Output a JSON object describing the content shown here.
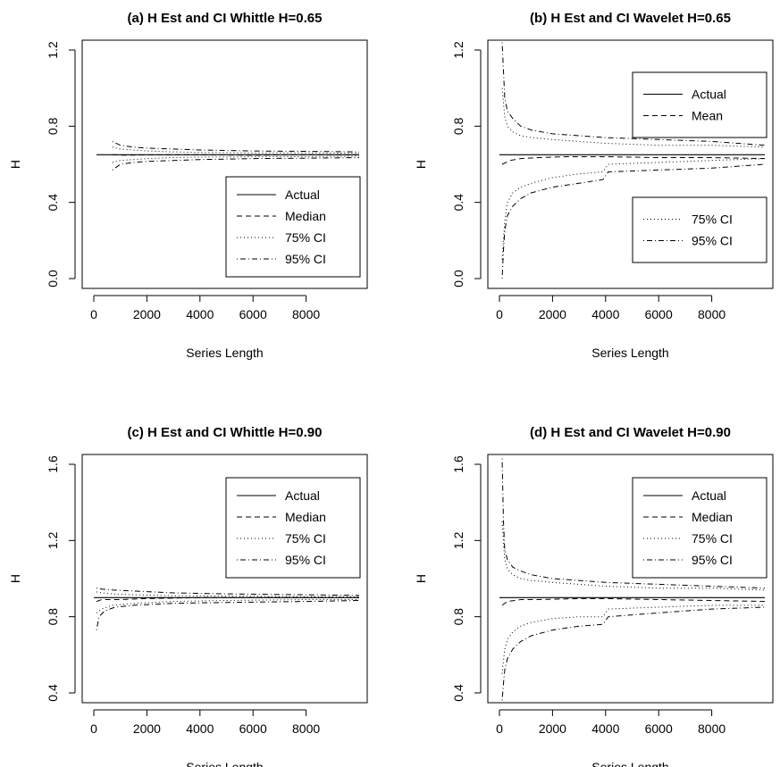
{
  "chart_data": [
    {
      "type": "line",
      "title": "(a) H Est and CI Whittle H=0.65",
      "xlabel": "Series Length",
      "ylabel": "H",
      "xlim": [
        0,
        10000
      ],
      "ylim": [
        0,
        1.2
      ],
      "xticks": [
        0,
        2000,
        4000,
        6000,
        8000
      ],
      "yticks": [
        0.0,
        0.4,
        0.8,
        1.2
      ],
      "legend": {
        "entries": [
          "Actual",
          "Median",
          "75% CI",
          "95% CI"
        ],
        "placement": "bottom-right"
      },
      "series": [
        {
          "name": "Actual",
          "style": "solid",
          "x": [
            100,
            10000
          ],
          "y": [
            0.65,
            0.65
          ]
        },
        {
          "name": "Median",
          "style": "dashed",
          "x": [
            700,
            1000,
            2000,
            4000,
            6000,
            8000,
            10000
          ],
          "y": [
            0.65,
            0.648,
            0.649,
            0.65,
            0.648,
            0.65,
            0.649
          ]
        },
        {
          "name": "75% CI",
          "style": "dotted",
          "x": [
            700,
            1000,
            1500,
            2000,
            3000,
            4000,
            6000,
            8000,
            10000
          ],
          "y": [
            0.69,
            0.68,
            0.675,
            0.67,
            0.665,
            0.662,
            0.66,
            0.66,
            0.658
          ]
        },
        {
          "name": "75% CI",
          "style": "dotted",
          "x": [
            700,
            1000,
            1500,
            2000,
            3000,
            4000,
            6000,
            8000,
            10000
          ],
          "y": [
            0.61,
            0.62,
            0.625,
            0.63,
            0.635,
            0.638,
            0.64,
            0.64,
            0.642
          ]
        },
        {
          "name": "95% CI",
          "style": "dotdash",
          "x": [
            700,
            1000,
            1500,
            2000,
            3000,
            4000,
            6000,
            8000,
            10000
          ],
          "y": [
            0.72,
            0.7,
            0.69,
            0.685,
            0.68,
            0.675,
            0.67,
            0.668,
            0.665
          ]
        },
        {
          "name": "95% CI",
          "style": "dotdash",
          "x": [
            700,
            1000,
            1500,
            2000,
            3000,
            4000,
            6000,
            8000,
            10000
          ],
          "y": [
            0.57,
            0.6,
            0.61,
            0.615,
            0.62,
            0.625,
            0.63,
            0.632,
            0.635
          ]
        }
      ]
    },
    {
      "type": "line",
      "title": "(b) H Est and CI Wavelet H=0.65",
      "xlabel": "Series Length",
      "ylabel": "H",
      "xlim": [
        0,
        10000
      ],
      "ylim": [
        0,
        1.2
      ],
      "xticks": [
        0,
        2000,
        4000,
        6000,
        8000
      ],
      "yticks": [
        0.0,
        0.4,
        0.8,
        1.2
      ],
      "legend": [
        {
          "entries": [
            "Actual",
            "Mean"
          ],
          "placement": "top-right"
        },
        {
          "entries": [
            "75% CI",
            "95% CI"
          ],
          "placement": "bottom-right"
        }
      ],
      "series": [
        {
          "name": "Actual",
          "style": "solid",
          "x": [
            0,
            10000
          ],
          "y": [
            0.65,
            0.65
          ]
        },
        {
          "name": "Mean",
          "style": "dashed",
          "x": [
            100,
            400,
            800,
            1500,
            2500,
            4000,
            6000,
            8000,
            10000
          ],
          "y": [
            0.6,
            0.62,
            0.63,
            0.635,
            0.64,
            0.64,
            0.635,
            0.635,
            0.63
          ]
        },
        {
          "name": "75% CI",
          "style": "dotted",
          "x": [
            100,
            200,
            300,
            500,
            800,
            1200,
            2000,
            3000,
            4000,
            6000,
            8000,
            10000
          ],
          "y": [
            1.0,
            0.85,
            0.8,
            0.77,
            0.75,
            0.74,
            0.73,
            0.72,
            0.71,
            0.7,
            0.7,
            0.69
          ]
        },
        {
          "name": "75% CI",
          "style": "dotted",
          "x": [
            100,
            200,
            300,
            500,
            800,
            1200,
            2000,
            3000,
            3900,
            4100,
            6000,
            8000,
            10000
          ],
          "y": [
            0.1,
            0.3,
            0.4,
            0.45,
            0.48,
            0.5,
            0.53,
            0.55,
            0.56,
            0.6,
            0.61,
            0.62,
            0.63
          ]
        },
        {
          "name": "95% CI",
          "style": "dotdash",
          "x": [
            100,
            200,
            300,
            500,
            800,
            1200,
            2000,
            3000,
            4000,
            6000,
            8000,
            10000
          ],
          "y": [
            1.24,
            0.95,
            0.88,
            0.84,
            0.8,
            0.78,
            0.76,
            0.75,
            0.74,
            0.73,
            0.72,
            0.7
          ]
        },
        {
          "name": "95% CI",
          "style": "dotdash",
          "x": [
            100,
            150,
            200,
            300,
            500,
            800,
            1200,
            2000,
            3000,
            3900,
            4100,
            6000,
            8000,
            10000
          ],
          "y": [
            0.0,
            0.15,
            0.25,
            0.33,
            0.38,
            0.42,
            0.45,
            0.48,
            0.5,
            0.52,
            0.56,
            0.57,
            0.58,
            0.6
          ]
        }
      ]
    },
    {
      "type": "line",
      "title": "(c) H Est and CI Whittle H=0.90",
      "xlabel": "Series Length",
      "ylabel": "H",
      "xlim": [
        0,
        10000
      ],
      "ylim": [
        0.4,
        1.6
      ],
      "xticks": [
        0,
        2000,
        4000,
        6000,
        8000
      ],
      "yticks": [
        0.4,
        0.8,
        1.2,
        1.6
      ],
      "legend": {
        "entries": [
          "Actual",
          "Median",
          "75% CI",
          "95% CI"
        ],
        "placement": "top-right"
      },
      "series": [
        {
          "name": "Actual",
          "style": "solid",
          "x": [
            0,
            10000
          ],
          "y": [
            0.9,
            0.9
          ]
        },
        {
          "name": "Median",
          "style": "dashed",
          "x": [
            100,
            300,
            1000,
            2000,
            4000,
            6000,
            8000,
            10000
          ],
          "y": [
            0.88,
            0.89,
            0.89,
            0.895,
            0.9,
            0.9,
            0.9,
            0.9
          ]
        },
        {
          "name": "75% CI",
          "style": "dotted",
          "x": [
            100,
            300,
            700,
            1500,
            3000,
            5000,
            8000,
            10000
          ],
          "y": [
            0.93,
            0.925,
            0.92,
            0.915,
            0.91,
            0.908,
            0.905,
            0.905
          ]
        },
        {
          "name": "75% CI",
          "style": "dotted",
          "x": [
            100,
            300,
            700,
            1500,
            3000,
            5000,
            8000,
            10000
          ],
          "y": [
            0.82,
            0.84,
            0.86,
            0.87,
            0.88,
            0.885,
            0.89,
            0.89
          ]
        },
        {
          "name": "95% CI",
          "style": "dotdash",
          "x": [
            100,
            300,
            700,
            1500,
            3000,
            5000,
            8000,
            10000
          ],
          "y": [
            0.95,
            0.945,
            0.94,
            0.935,
            0.925,
            0.92,
            0.915,
            0.912
          ]
        },
        {
          "name": "95% CI",
          "style": "dotdash",
          "x": [
            100,
            200,
            400,
            800,
            1500,
            3000,
            5000,
            8000,
            10000
          ],
          "y": [
            0.73,
            0.8,
            0.83,
            0.85,
            0.86,
            0.87,
            0.875,
            0.88,
            0.885
          ]
        }
      ]
    },
    {
      "type": "line",
      "title": "(d) H Est and CI Wavelet H=0.90",
      "xlabel": "Series Length",
      "ylabel": "H",
      "xlim": [
        0,
        10000
      ],
      "ylim": [
        0.4,
        1.6
      ],
      "xticks": [
        0,
        2000,
        4000,
        6000,
        8000
      ],
      "yticks": [
        0.4,
        0.8,
        1.2,
        1.6
      ],
      "legend": {
        "entries": [
          "Actual",
          "Median",
          "75% CI",
          "95% CI"
        ],
        "placement": "top-right"
      },
      "series": [
        {
          "name": "Actual",
          "style": "solid",
          "x": [
            0,
            10000
          ],
          "y": [
            0.9,
            0.9
          ]
        },
        {
          "name": "Median",
          "style": "dashed",
          "x": [
            100,
            300,
            800,
            1500,
            3000,
            4000,
            6000,
            8000,
            10000
          ],
          "y": [
            0.86,
            0.88,
            0.89,
            0.89,
            0.895,
            0.895,
            0.89,
            0.885,
            0.88
          ]
        },
        {
          "name": "75% CI",
          "style": "dotted",
          "x": [
            100,
            200,
            300,
            500,
            800,
            1200,
            2000,
            3000,
            4000,
            6000,
            8000,
            10000
          ],
          "y": [
            1.3,
            1.1,
            1.05,
            1.02,
            1.0,
            0.99,
            0.98,
            0.97,
            0.96,
            0.95,
            0.95,
            0.94
          ]
        },
        {
          "name": "75% CI",
          "style": "dotted",
          "x": [
            100,
            200,
            300,
            500,
            800,
            1200,
            2000,
            3000,
            3900,
            4100,
            6000,
            8000,
            10000
          ],
          "y": [
            0.5,
            0.63,
            0.68,
            0.72,
            0.75,
            0.77,
            0.79,
            0.8,
            0.8,
            0.84,
            0.85,
            0.86,
            0.86
          ]
        },
        {
          "name": "95% CI",
          "style": "dotdash",
          "x": [
            100,
            150,
            200,
            300,
            500,
            800,
            1200,
            2000,
            3000,
            4000,
            6000,
            8000,
            10000
          ],
          "y": [
            1.63,
            1.3,
            1.15,
            1.1,
            1.06,
            1.04,
            1.02,
            1.0,
            0.99,
            0.98,
            0.97,
            0.96,
            0.95
          ]
        },
        {
          "name": "95% CI",
          "style": "dotdash",
          "x": [
            100,
            150,
            200,
            300,
            500,
            800,
            1200,
            2000,
            3000,
            3900,
            4100,
            6000,
            8000,
            10000
          ],
          "y": [
            0.36,
            0.45,
            0.52,
            0.58,
            0.63,
            0.67,
            0.7,
            0.73,
            0.75,
            0.76,
            0.8,
            0.82,
            0.84,
            0.85
          ]
        }
      ]
    }
  ]
}
